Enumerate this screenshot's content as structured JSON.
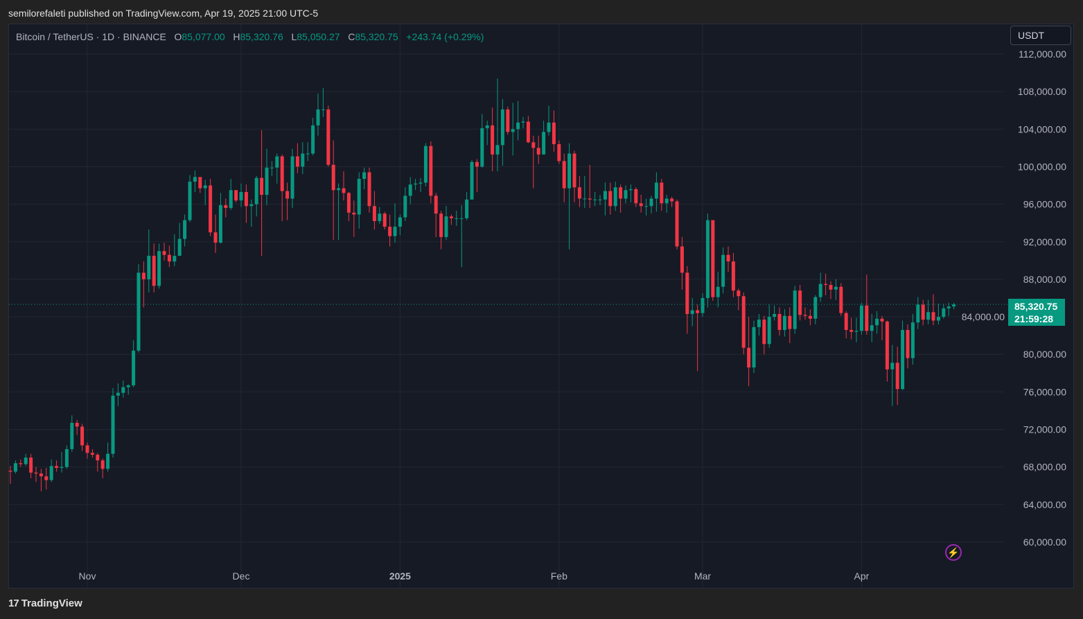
{
  "header": {
    "published": "semilorefaleti published on TradingView.com, Apr 19, 2025 21:00 UTC-5"
  },
  "legend": {
    "symbol": "Bitcoin / TetherUS · 1D · BINANCE",
    "o_label": "O",
    "o": "85,077.00",
    "h_label": "H",
    "h": "85,320.76",
    "l_label": "L",
    "l": "85,050.27",
    "c_label": "C",
    "c": "85,320.75",
    "change": "+243.74 (+0.29%)"
  },
  "currency_button": "USDT",
  "last_price": {
    "value": "85,320.75",
    "countdown": "21:59:28"
  },
  "branding": {
    "logo_mark": "17",
    "name": "TradingView"
  },
  "icons": {
    "alert": "lightning-icon"
  },
  "colors": {
    "up": "#089981",
    "down": "#f23645",
    "background": "#161a25",
    "grid": "#232735"
  },
  "chart_data": {
    "type": "candlestick",
    "interval": "1D",
    "ylim": [
      58000,
      113000
    ],
    "y_ticks": [
      60000,
      64000,
      68000,
      72000,
      76000,
      80000,
      84000,
      88000,
      92000,
      96000,
      100000,
      104000,
      108000,
      112000
    ],
    "y_tick_labels": [
      "60,000.00",
      "64,000.00",
      "68,000.00",
      "72,000.00",
      "76,000.00",
      "80,000.00",
      "84,000.00",
      "88,000.00",
      "92,000.00",
      "96,000.00",
      "100,000.00",
      "104,000.00",
      "108,000.00",
      "112,000.00"
    ],
    "x_ticks": [
      {
        "label": "Nov",
        "index": 15,
        "bold": false
      },
      {
        "label": "Dec",
        "index": 45,
        "bold": false
      },
      {
        "label": "2025",
        "index": 76,
        "bold": true
      },
      {
        "label": "Feb",
        "index": 107,
        "bold": false
      },
      {
        "label": "Mar",
        "index": 135,
        "bold": false
      },
      {
        "label": "Apr",
        "index": 166,
        "bold": false
      }
    ],
    "first_open": 67600,
    "close": [
      67500,
      68400,
      68300,
      69000,
      67400,
      67300,
      67000,
      66600,
      68100,
      67900,
      68000,
      69900,
      72700,
      72300,
      70300,
      69500,
      69300,
      68700,
      67800,
      69400,
      75600,
      75900,
      76500,
      76700,
      80400,
      88700,
      88000,
      90500,
      87300,
      91000,
      90600,
      89900,
      90500,
      92300,
      94300,
      98400,
      98900,
      97700,
      98000,
      93000,
      91900,
      95900,
      95600,
      97500,
      96400,
      97300,
      95800,
      96000,
      98800,
      97000,
      99900,
      99900,
      101100,
      97400,
      96600,
      101100,
      100000,
      101400,
      101400,
      104400,
      106100,
      106100,
      100200,
      97500,
      97700,
      97200,
      95100,
      94900,
      98700,
      99400,
      95800,
      94200,
      95000,
      93600,
      92600,
      93600,
      94600,
      96900,
      98100,
      98200,
      98300,
      102200,
      96900,
      95000,
      92500,
      94700,
      94500,
      94500,
      94500,
      96500,
      100500,
      100000,
      104100,
      104400,
      101300,
      102300,
      106100,
      103700,
      104000,
      104700,
      104800,
      102600,
      102000,
      101300,
      103700,
      104700,
      102400,
      100600,
      97700,
      101400,
      97800,
      96600,
      96600,
      96500,
      96500,
      96500,
      97400,
      95800,
      97800,
      96600,
      97500,
      97600,
      96100,
      95800,
      95800,
      96600,
      98300,
      96100,
      96600,
      96300,
      91500,
      88700,
      84300,
      84700,
      84400,
      86000,
      94300,
      86100,
      87200,
      90600,
      89900,
      86800,
      86200,
      80700,
      78600,
      82900,
      83700,
      81100,
      84000,
      84300,
      82600,
      84100,
      82700,
      86800,
      84200,
      84100,
      83800,
      86100,
      87500,
      87400,
      86900,
      87200,
      84400,
      82600,
      82400,
      82500,
      85200,
      82500,
      83100,
      83800,
      83500,
      78400,
      79100,
      76300,
      82600,
      79600,
      83400,
      85300,
      83700,
      84500,
      83600,
      84000,
      84900,
      85100,
      85321
    ],
    "high": [
      68100,
      68700,
      68800,
      69400,
      69400,
      68000,
      67800,
      67900,
      68800,
      68700,
      69600,
      70300,
      73500,
      73000,
      72600,
      70600,
      69900,
      69500,
      68900,
      70600,
      76400,
      76900,
      77200,
      76800,
      81500,
      89600,
      89900,
      93300,
      91800,
      91800,
      91900,
      91600,
      92800,
      94000,
      94900,
      99100,
      99600,
      98800,
      98600,
      98700,
      94900,
      97200,
      96600,
      98700,
      97500,
      98200,
      98100,
      96500,
      99000,
      103900,
      101900,
      100600,
      101400,
      101300,
      98300,
      101900,
      102500,
      102600,
      102600,
      105200,
      107800,
      108400,
      106500,
      102800,
      98200,
      99500,
      97300,
      96400,
      99400,
      99900,
      99900,
      97400,
      95700,
      95200,
      94900,
      96100,
      94900,
      97800,
      98900,
      98700,
      98800,
      102500,
      102700,
      97200,
      95300,
      95800,
      94900,
      95300,
      95900,
      97300,
      100700,
      100800,
      105600,
      104900,
      106300,
      109400,
      107200,
      106400,
      106800,
      107000,
      105300,
      105400,
      103300,
      103300,
      104900,
      106500,
      106000,
      102800,
      101400,
      102500,
      101700,
      99000,
      99000,
      100200,
      97300,
      97000,
      98300,
      98300,
      98400,
      98100,
      98000,
      98100,
      97800,
      97000,
      96600,
      96900,
      99400,
      98700,
      97000,
      96800,
      96500,
      92500,
      89400,
      86000,
      85300,
      86500,
      95000,
      94300,
      88800,
      91400,
      91500,
      90800,
      87000,
      86600,
      84000,
      83600,
      84300,
      84100,
      85300,
      85200,
      85000,
      84800,
      85000,
      87300,
      87400,
      85000,
      84800,
      86300,
      88700,
      88600,
      87800,
      88000,
      87600,
      84600,
      83900,
      83900,
      85500,
      88500,
      84300,
      84600,
      84100,
      83600,
      81000,
      80800,
      83600,
      83200,
      84300,
      86100,
      85800,
      85800,
      86400,
      85400,
      85400,
      85500,
      85500
    ],
    "low": [
      66200,
      67300,
      68000,
      68100,
      66800,
      66400,
      65400,
      65600,
      66400,
      67500,
      67400,
      67800,
      69600,
      71400,
      69700,
      68900,
      69000,
      67500,
      66800,
      67500,
      69000,
      74500,
      75400,
      75700,
      76500,
      80200,
      85000,
      86600,
      86600,
      87000,
      90000,
      89300,
      89400,
      90500,
      91500,
      94100,
      97300,
      97200,
      95900,
      92600,
      90800,
      91800,
      94600,
      95400,
      96200,
      95700,
      94000,
      93600,
      94700,
      90500,
      95900,
      99000,
      98200,
      94200,
      94300,
      95600,
      99300,
      99200,
      100600,
      101200,
      103300,
      105300,
      100000,
      92200,
      92200,
      96400,
      94200,
      92500,
      93400,
      97600,
      95100,
      93300,
      93900,
      93300,
      91500,
      91900,
      92700,
      94200,
      96000,
      97500,
      97300,
      97900,
      96100,
      92500,
      91200,
      92200,
      93800,
      93700,
      89300,
      94300,
      96500,
      97300,
      99900,
      102300,
      99500,
      99500,
      100100,
      103400,
      101200,
      102800,
      104100,
      102500,
      97700,
      100300,
      101300,
      103300,
      101600,
      100300,
      96200,
      91200,
      96200,
      95700,
      95600,
      95600,
      95800,
      95900,
      94800,
      94900,
      95300,
      95100,
      96100,
      96200,
      95700,
      95100,
      94800,
      95000,
      95200,
      95300,
      95100,
      95700,
      91200,
      86900,
      82200,
      83000,
      78200,
      84000,
      85000,
      85700,
      85000,
      86500,
      88800,
      86100,
      84700,
      80000,
      76600,
      78000,
      82000,
      80000,
      80700,
      83600,
      82000,
      81900,
      81200,
      82200,
      83600,
      83700,
      83100,
      83200,
      85600,
      86300,
      85900,
      85800,
      84100,
      81700,
      81600,
      81300,
      82100,
      82100,
      81300,
      82200,
      81500,
      77100,
      74500,
      74600,
      76200,
      78500,
      78900,
      82700,
      83100,
      83200,
      83100,
      83200,
      83800,
      84100,
      84800
    ]
  }
}
